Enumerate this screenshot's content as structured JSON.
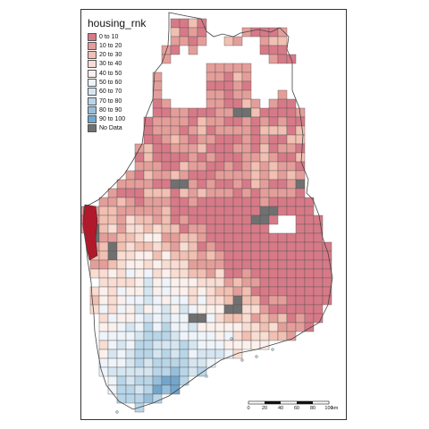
{
  "legend": {
    "title": "housing_rnk",
    "items": [
      {
        "label": "0 to 10",
        "color": "#d77a87"
      },
      {
        "label": "10 to 20",
        "color": "#e49e9a"
      },
      {
        "label": "20 to 30",
        "color": "#f1c0b2"
      },
      {
        "label": "30 to 40",
        "color": "#f9dcd2"
      },
      {
        "label": "40 to 50",
        "color": "#fbf0ec"
      },
      {
        "label": "50 to 60",
        "color": "#eef4f9"
      },
      {
        "label": "60 to 70",
        "color": "#d6e6f1"
      },
      {
        "label": "70 to 80",
        "color": "#b9d5e8"
      },
      {
        "label": "80 to 90",
        "color": "#97bfdc"
      },
      {
        "label": "90 to 100",
        "color": "#73a6cc"
      },
      {
        "label": "No Data",
        "color": "#707070"
      }
    ]
  },
  "scale_bar": {
    "ticks": [
      "0",
      "20",
      "40",
      "60",
      "80",
      "100"
    ],
    "unit": "km"
  },
  "highlight_color": "#b2182b"
}
